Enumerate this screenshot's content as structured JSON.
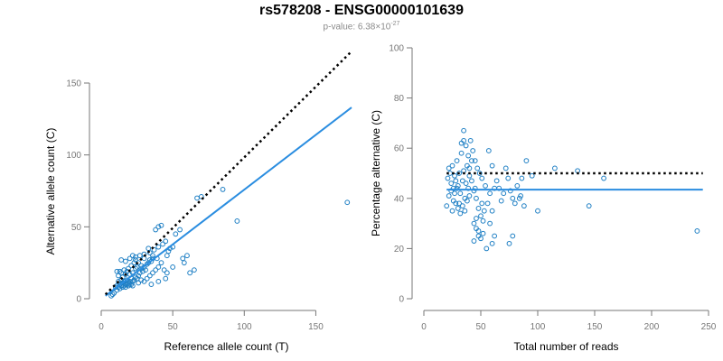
{
  "title": "rs578208 - ENSG00000101639",
  "subtitle_prefix": "p-value: 6.38×10",
  "subtitle_exp": "-27",
  "colors": {
    "points": "#1e7fc4",
    "fit_line": "#2a8de0",
    "reference_line": "#000000"
  },
  "chart_data": [
    {
      "type": "scatter",
      "xlabel": "Reference allele count (T)",
      "ylabel": "Alternative allele count (C)",
      "xlim": [
        0,
        175
      ],
      "ylim": [
        0,
        150
      ],
      "xticks": [
        "0",
        "50",
        "100",
        "150"
      ],
      "xtick_values": [
        0,
        50,
        100,
        150
      ],
      "yticks": [
        "0",
        "50",
        "100",
        "150"
      ],
      "ytick_values": [
        0,
        50,
        100,
        150
      ],
      "reference_line": {
        "style": "dotted",
        "x": [
          3,
          175
        ],
        "y": [
          3,
          172
        ]
      },
      "fit_line": {
        "style": "solid",
        "x": [
          3,
          175
        ],
        "y": [
          2,
          133
        ]
      },
      "points": [
        [
          11,
          19
        ],
        [
          12,
          16
        ],
        [
          13,
          19
        ],
        [
          14,
          18
        ],
        [
          15,
          15
        ],
        [
          16,
          20
        ],
        [
          17,
          17
        ],
        [
          18,
          19
        ],
        [
          19,
          21
        ],
        [
          20,
          17
        ],
        [
          21,
          23
        ],
        [
          22,
          18
        ],
        [
          23,
          25
        ],
        [
          24,
          21
        ],
        [
          25,
          22
        ],
        [
          12,
          12
        ],
        [
          13,
          10
        ],
        [
          14,
          13
        ],
        [
          15,
          11
        ],
        [
          16,
          12
        ],
        [
          17,
          10
        ],
        [
          18,
          13
        ],
        [
          19,
          11
        ],
        [
          20,
          12
        ],
        [
          21,
          14
        ],
        [
          22,
          12
        ],
        [
          23,
          13
        ],
        [
          24,
          15
        ],
        [
          25,
          14
        ],
        [
          26,
          16
        ],
        [
          27,
          18
        ],
        [
          28,
          21
        ],
        [
          29,
          19
        ],
        [
          30,
          22
        ],
        [
          31,
          20
        ],
        [
          32,
          24
        ],
        [
          33,
          25
        ],
        [
          34,
          27
        ],
        [
          35,
          26
        ],
        [
          36,
          28
        ],
        [
          11,
          9
        ],
        [
          12,
          8
        ],
        [
          13,
          7
        ],
        [
          14,
          9
        ],
        [
          15,
          8
        ],
        [
          16,
          9
        ],
        [
          17,
          8
        ],
        [
          18,
          10
        ],
        [
          19,
          9
        ],
        [
          20,
          10
        ],
        [
          21,
          10
        ],
        [
          22,
          9
        ],
        [
          26,
          11
        ],
        [
          28,
          13
        ],
        [
          30,
          12
        ],
        [
          32,
          14
        ],
        [
          34,
          16
        ],
        [
          36,
          18
        ],
        [
          38,
          20
        ],
        [
          40,
          22
        ],
        [
          14,
          27
        ],
        [
          17,
          26
        ],
        [
          20,
          28
        ],
        [
          24,
          29
        ],
        [
          27,
          30
        ],
        [
          30,
          31
        ],
        [
          34,
          32
        ],
        [
          37,
          34
        ],
        [
          40,
          36
        ],
        [
          43,
          38
        ],
        [
          38,
          48
        ],
        [
          40,
          50
        ],
        [
          42,
          51
        ],
        [
          45,
          40
        ],
        [
          46,
          30
        ],
        [
          47,
          33
        ],
        [
          48,
          35
        ],
        [
          50,
          36
        ],
        [
          52,
          45
        ],
        [
          55,
          48
        ],
        [
          57,
          28
        ],
        [
          58,
          25
        ],
        [
          60,
          30
        ],
        [
          62,
          18
        ],
        [
          65,
          20
        ],
        [
          67,
          70
        ],
        [
          70,
          71
        ],
        [
          85,
          76
        ],
        [
          95,
          54
        ],
        [
          172,
          67
        ],
        [
          10,
          8
        ],
        [
          11,
          6
        ],
        [
          9,
          4
        ],
        [
          8,
          3
        ],
        [
          7,
          2
        ],
        [
          22,
          30
        ],
        [
          24,
          27
        ],
        [
          26,
          25
        ],
        [
          28,
          23
        ],
        [
          30,
          28
        ],
        [
          33,
          35
        ],
        [
          36,
          30
        ],
        [
          39,
          28
        ],
        [
          42,
          25
        ],
        [
          44,
          20
        ],
        [
          46,
          18
        ],
        [
          50,
          22
        ],
        [
          45,
          14
        ],
        [
          40,
          12
        ],
        [
          35,
          10
        ]
      ]
    },
    {
      "type": "scatter",
      "xlabel": "Total number of reads",
      "ylabel": "Percentage alternative (C)",
      "xlim": [
        0,
        250
      ],
      "ylim": [
        0,
        100
      ],
      "xticks": [
        "0",
        "50",
        "100",
        "150",
        "200",
        "250"
      ],
      "xtick_values": [
        0,
        50,
        100,
        150,
        200,
        250
      ],
      "yticks": [
        "0",
        "20",
        "40",
        "60",
        "80",
        "100"
      ],
      "ytick_values": [
        0,
        20,
        40,
        60,
        80,
        100
      ],
      "reference_line": {
        "style": "dotted",
        "x": [
          20,
          245
        ],
        "y": [
          50,
          50
        ]
      },
      "fit_line": {
        "style": "solid",
        "x": [
          20,
          245
        ],
        "y": [
          43.5,
          43.5
        ]
      },
      "points": [
        [
          21,
          48
        ],
        [
          22,
          52
        ],
        [
          23,
          50
        ],
        [
          24,
          46
        ],
        [
          25,
          53
        ],
        [
          26,
          44
        ],
        [
          27,
          49
        ],
        [
          28,
          47
        ],
        [
          29,
          55
        ],
        [
          30,
          45
        ],
        [
          31,
          50
        ],
        [
          32,
          42
        ],
        [
          33,
          58
        ],
        [
          34,
          47
        ],
        [
          35,
          51
        ],
        [
          36,
          40
        ],
        [
          37,
          46
        ],
        [
          38,
          53
        ],
        [
          39,
          44
        ],
        [
          40,
          49
        ],
        [
          22,
          41
        ],
        [
          24,
          43
        ],
        [
          26,
          39
        ],
        [
          28,
          38
        ],
        [
          30,
          36
        ],
        [
          32,
          34
        ],
        [
          34,
          37
        ],
        [
          36,
          35
        ],
        [
          38,
          39
        ],
        [
          40,
          41
        ],
        [
          33,
          62
        ],
        [
          35,
          67
        ],
        [
          37,
          61
        ],
        [
          39,
          57
        ],
        [
          41,
          63
        ],
        [
          43,
          59
        ],
        [
          45,
          55
        ],
        [
          47,
          52
        ],
        [
          49,
          50
        ],
        [
          51,
          48
        ],
        [
          42,
          47
        ],
        [
          44,
          43
        ],
        [
          46,
          40
        ],
        [
          48,
          36
        ],
        [
          50,
          33
        ],
        [
          52,
          31
        ],
        [
          54,
          45
        ],
        [
          56,
          38
        ],
        [
          58,
          42
        ],
        [
          60,
          35
        ],
        [
          44,
          30
        ],
        [
          46,
          28
        ],
        [
          48,
          25
        ],
        [
          50,
          24
        ],
        [
          52,
          26
        ],
        [
          55,
          20
        ],
        [
          58,
          30
        ],
        [
          60,
          22
        ],
        [
          62,
          25
        ],
        [
          64,
          47
        ],
        [
          66,
          44
        ],
        [
          68,
          39
        ],
        [
          70,
          42
        ],
        [
          72,
          52
        ],
        [
          74,
          48
        ],
        [
          76,
          43
        ],
        [
          78,
          40
        ],
        [
          80,
          38
        ],
        [
          82,
          45
        ],
        [
          84,
          40
        ],
        [
          44,
          23
        ],
        [
          46,
          32
        ],
        [
          48,
          27
        ],
        [
          51,
          38
        ],
        [
          53,
          35
        ],
        [
          57,
          59
        ],
        [
          60,
          53
        ],
        [
          62,
          44
        ],
        [
          75,
          22
        ],
        [
          78,
          25
        ],
        [
          85,
          41
        ],
        [
          86,
          48
        ],
        [
          88,
          37
        ],
        [
          90,
          55
        ],
        [
          95,
          49
        ],
        [
          100,
          35
        ],
        [
          115,
          52
        ],
        [
          135,
          51
        ],
        [
          145,
          37
        ],
        [
          158,
          48
        ],
        [
          240,
          27
        ],
        [
          20,
          37
        ],
        [
          25,
          35
        ],
        [
          27,
          42
        ],
        [
          29,
          44
        ],
        [
          31,
          38
        ],
        [
          35,
          63
        ],
        [
          40,
          52
        ],
        [
          42,
          55
        ],
        [
          45,
          44
        ]
      ]
    }
  ]
}
